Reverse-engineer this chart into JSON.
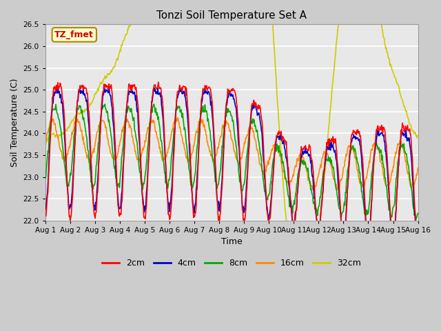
{
  "title": "Tonzi Soil Temperature Set A",
  "xlabel": "Time",
  "ylabel": "Soil Temperature (C)",
  "ylim": [
    22.0,
    26.5
  ],
  "yticks": [
    22.0,
    22.5,
    23.0,
    23.5,
    24.0,
    24.5,
    25.0,
    25.5,
    26.0,
    26.5
  ],
  "xtick_labels": [
    "Aug 1",
    "Aug 2",
    "Aug 3",
    "Aug 4",
    "Aug 5",
    "Aug 6",
    "Aug 7",
    "Aug 8",
    "Aug 9",
    "Aug 10",
    "Aug 11",
    "Aug 12",
    "Aug 13",
    "Aug 14",
    "Aug 15",
    "Aug 16"
  ],
  "annotation_text": "TZ_fmet",
  "annotation_color": "#cc0000",
  "annotation_bg": "#ffffcc",
  "annotation_border": "#aa8800",
  "colors": {
    "2cm": "#ff0000",
    "4cm": "#0000cc",
    "8cm": "#00aa00",
    "16cm": "#ff8800",
    "32cm": "#cccc00"
  },
  "plot_bg": "#e8e8e8",
  "fig_bg": "#cccccc",
  "linewidth": 1.2,
  "n_points": 720,
  "days": 15
}
